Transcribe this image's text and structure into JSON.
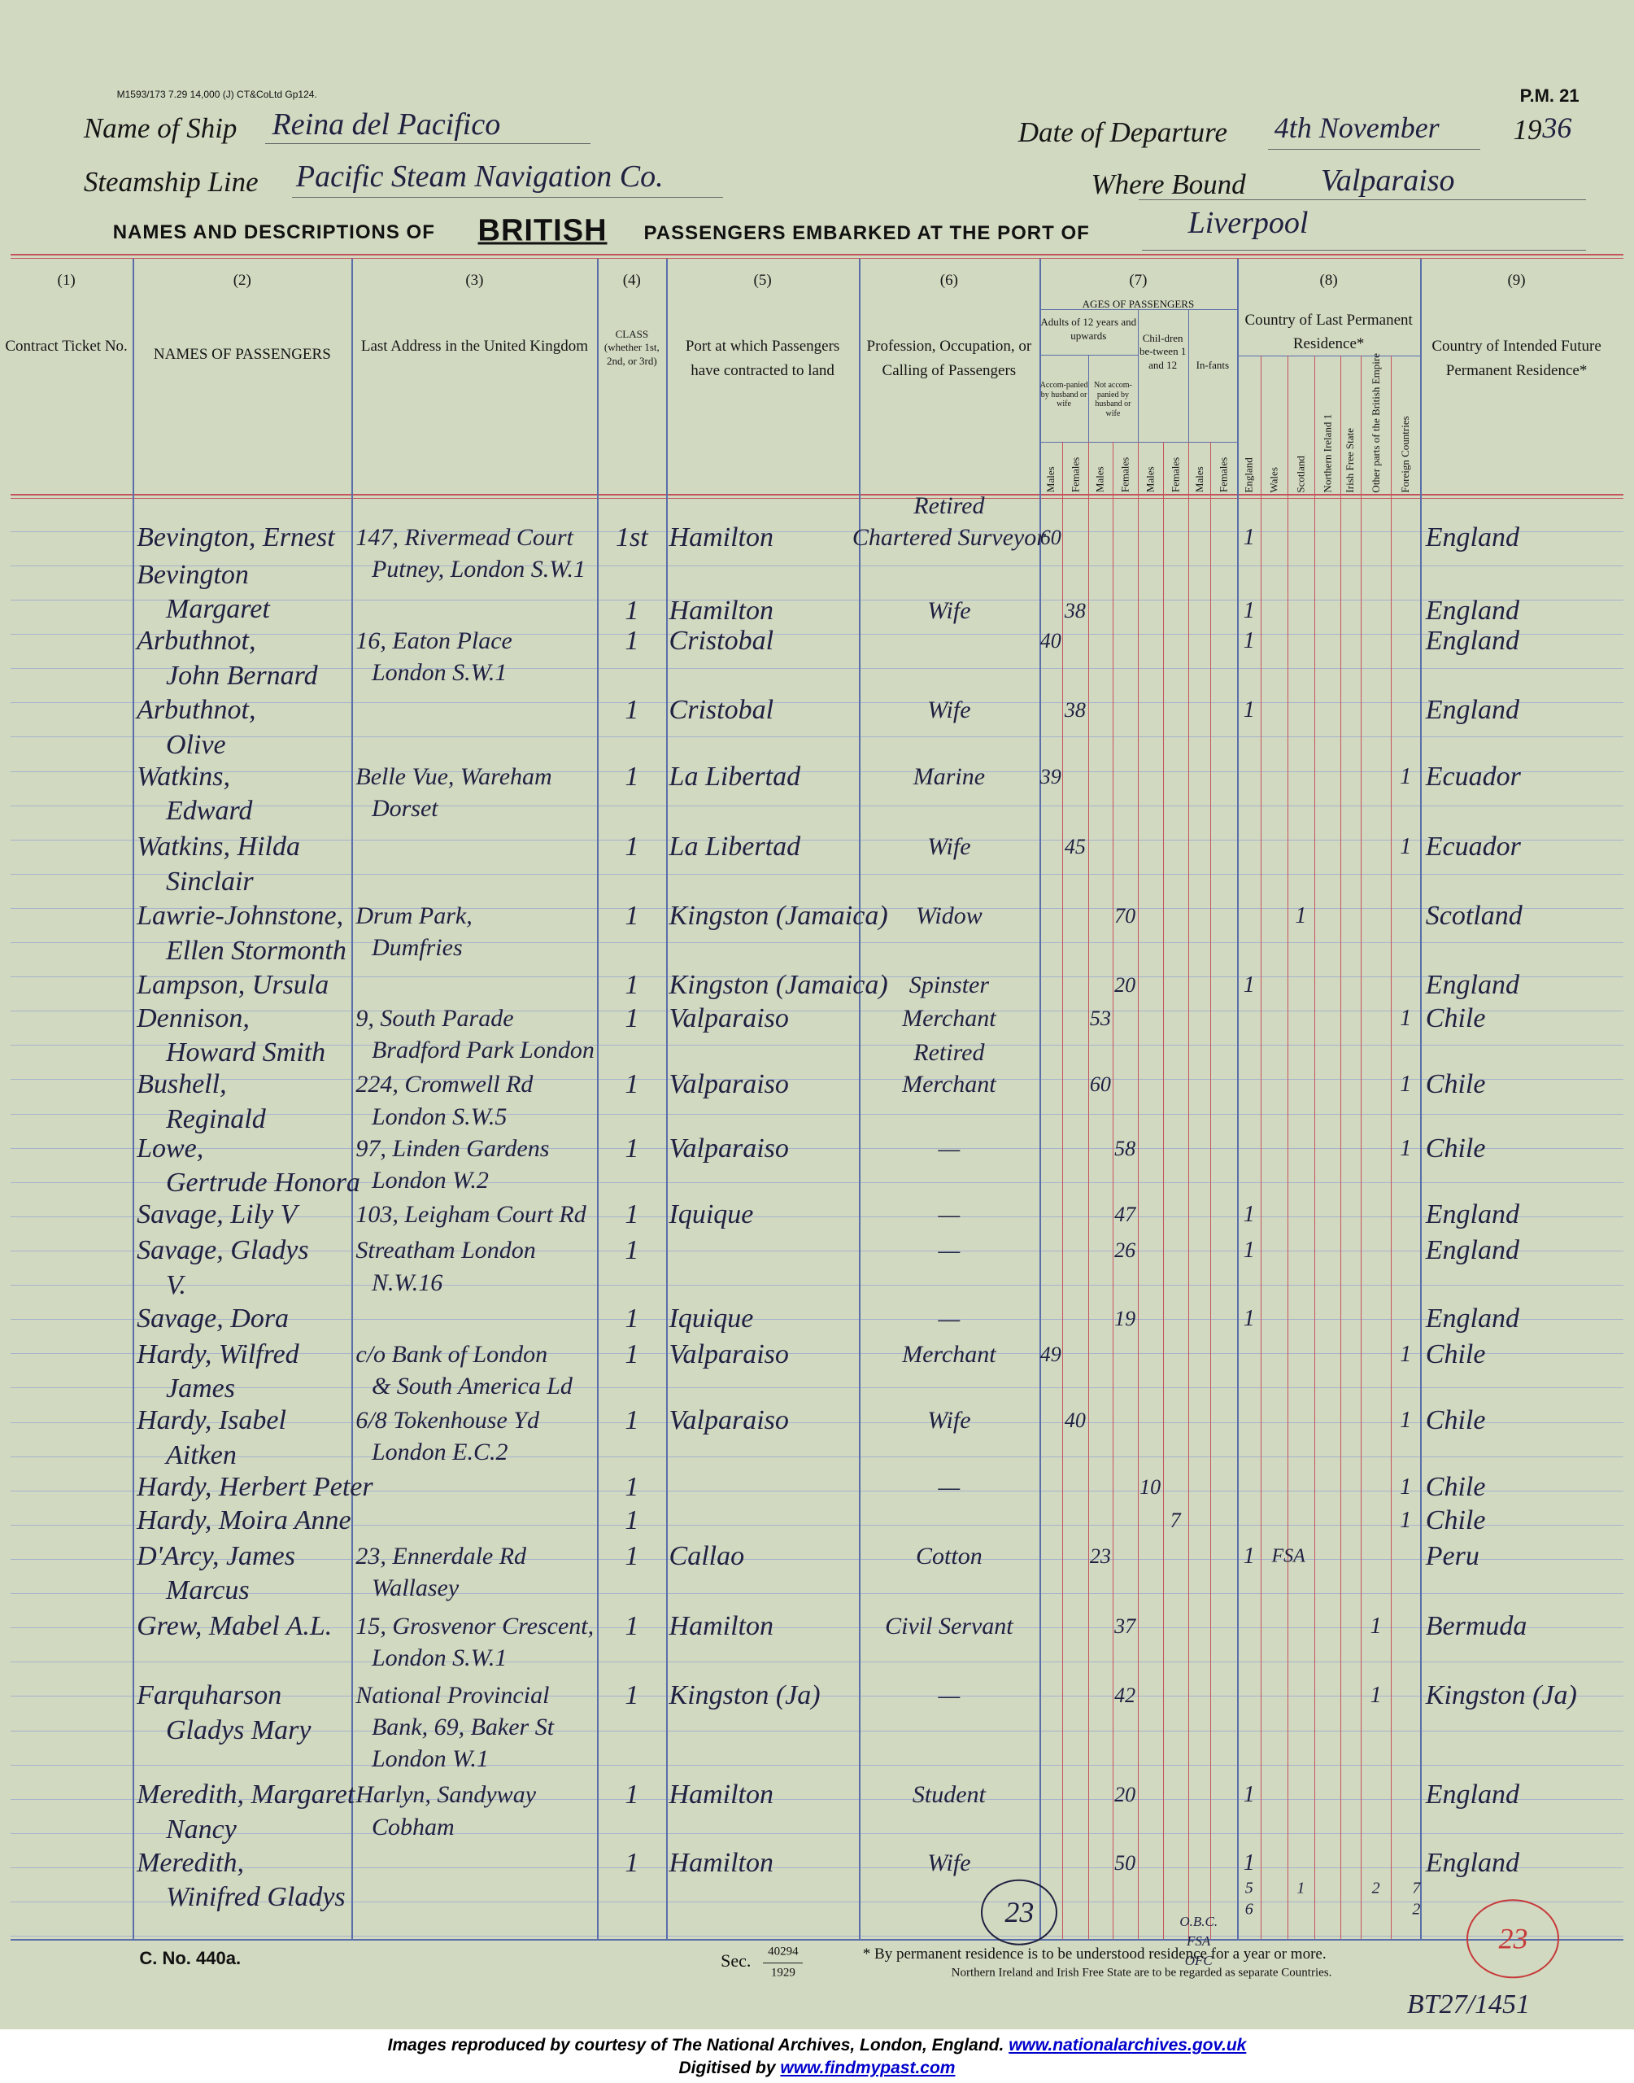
{
  "header": {
    "form_code": "M1593/173 7.29 14,000 (J) CT&CoLtd Gp124.",
    "form_number": "P.M. 21",
    "ship_label": "Name of Ship",
    "ship": "Reina del Pacifico",
    "departure_label": "Date of Departure",
    "departure_day": "4th November",
    "departure_year_printed": "19",
    "departure_year": "36",
    "line_label": "Steamship Line",
    "line": "Pacific Steam Navigation Co.",
    "bound_label": "Where Bound",
    "bound": "Valparaiso",
    "heading_start": "NAMES AND DESCRIPTIONS OF",
    "heading_british": "BRITISH",
    "heading_end": "PASSENGERS EMBARKED AT THE PORT OF",
    "port": "Liverpool"
  },
  "columns": [
    {
      "number": "(1)",
      "label": "Contract Ticket No."
    },
    {
      "number": "(2)",
      "label": "NAMES OF PASSENGERS"
    },
    {
      "number": "(3)",
      "label": "Last Address in the United Kingdom"
    },
    {
      "number": "(4)",
      "label": "CLASS (whether 1st, 2nd, or 3rd)"
    },
    {
      "number": "(5)",
      "label": "Port at which Passengers have contracted to land"
    },
    {
      "number": "(6)",
      "label": "Profession, Occupation, or Calling of Passengers"
    },
    {
      "number": "(7)",
      "label": "AGES OF PASSENGERS"
    },
    {
      "number": "(8)",
      "label": "Country of Last Permanent Residence*"
    },
    {
      "number": "(9)",
      "label": "Country of Intended Future Permanent Residence*"
    }
  ],
  "ages": {
    "adults": "Adults of 12 years and upwards",
    "accompanied": "Accom-panied by husband or wife",
    "not_accompanied": "Not accom-panied by husband or wife",
    "children": "Chil-dren be-tween 1 and 12",
    "infants": "In-fants",
    "sexes": [
      "Males",
      "Females",
      "Males",
      "Females",
      "Males",
      "Females",
      "Males",
      "Females"
    ]
  },
  "residence": {
    "countries": [
      "England",
      "Wales",
      "Scotland",
      "Northern Ireland 1",
      "Irish Free State",
      "Other parts of the British Empire",
      "Foreign Countries"
    ]
  },
  "rows": [
    {
      "name": [
        "Bevington, Ernest"
      ],
      "address": [
        "147, Rivermead Court",
        "Putney, London S.W.1"
      ],
      "class": "1st",
      "port": "Hamilton",
      "profession": [
        "Retired",
        "Chartered Surveyor"
      ],
      "age": 60,
      "age_column": 0,
      "residence": "1",
      "residence_column": 0,
      "intended": "England"
    },
    {
      "name": [
        "Bevington",
        "Margaret"
      ],
      "class": "1",
      "port": "Hamilton",
      "profession": [
        "Wife"
      ],
      "age": 38,
      "age_column": 1,
      "residence": "1",
      "residence_column": 0,
      "intended": "England"
    },
    {
      "name": [
        "Arbuthnot,",
        "John Bernard"
      ],
      "address": [
        "16, Eaton Place",
        "London S.W.1"
      ],
      "class": "1",
      "port": "Cristobal",
      "age": 40,
      "age_column": 0,
      "residence": "1",
      "residence_column": 0,
      "intended": "England"
    },
    {
      "name": [
        "Arbuthnot,",
        "Olive"
      ],
      "class": "1",
      "port": "Cristobal",
      "profession": [
        "Wife"
      ],
      "age": 38,
      "age_column": 1,
      "residence": "1",
      "residence_column": 0,
      "intended": "England"
    },
    {
      "name": [
        "Watkins,",
        "Edward"
      ],
      "address": [
        "Belle Vue, Wareham",
        "Dorset"
      ],
      "class": "1",
      "port": "La Libertad",
      "profession": [
        "Marine"
      ],
      "age": 39,
      "age_column": 0,
      "residence": "1",
      "residence_column": 6,
      "intended": "Ecuador"
    },
    {
      "name": [
        "Watkins, Hilda",
        "Sinclair"
      ],
      "class": "1",
      "port": "La Libertad",
      "profession": [
        "Wife"
      ],
      "age": 45,
      "age_column": 1,
      "residence": "1",
      "residence_column": 6,
      "intended": "Ecuador"
    },
    {
      "name": [
        "Lawrie-Johnstone,",
        "Ellen Stormonth"
      ],
      "address": [
        "Drum Park,",
        "Dumfries"
      ],
      "class": "1",
      "port": "Kingston (Jamaica)",
      "profession": [
        "Widow"
      ],
      "age": 70,
      "age_column": 3,
      "residence": "1",
      "residence_column": 2,
      "intended": "Scotland"
    },
    {
      "name": [
        "Lampson, Ursula"
      ],
      "class": "1",
      "port": "Kingston (Jamaica)",
      "profession": [
        "Spinster"
      ],
      "age": 20,
      "age_column": 3,
      "residence": "1",
      "residence_column": 0,
      "intended": "England"
    },
    {
      "name": [
        "Dennison,",
        "Howard Smith"
      ],
      "address": [
        "9, South Parade",
        "Bradford Park London"
      ],
      "class": "1",
      "port": "Valparaiso",
      "profession": [
        "Merchant"
      ],
      "age": 53,
      "age_column": 2,
      "residence": "1",
      "residence_column": 6,
      "intended": "Chile"
    },
    {
      "name": [
        "Bushell,",
        "Reginald"
      ],
      "address": [
        "224, Cromwell Rd",
        "London S.W.5"
      ],
      "class": "1",
      "port": "Valparaiso",
      "profession": [
        "Retired",
        "Merchant"
      ],
      "age": 60,
      "age_column": 2,
      "residence": "1",
      "residence_column": 6,
      "intended": "Chile"
    },
    {
      "name": [
        "Lowe,",
        "Gertrude Honora"
      ],
      "address": [
        "97, Linden Gardens",
        "London W.2"
      ],
      "class": "1",
      "port": "Valparaiso",
      "profession": [
        "—"
      ],
      "age": 58,
      "age_column": 3,
      "residence": "1",
      "residence_column": 6,
      "intended": "Chile"
    },
    {
      "name": [
        "Savage, Lily V"
      ],
      "address": [
        "103, Leigham Court Rd"
      ],
      "class": "1",
      "port": "Iquique",
      "profession": [
        "—"
      ],
      "age": 47,
      "age_column": 3,
      "residence": "1",
      "residence_column": 0,
      "intended": "England"
    },
    {
      "name": [
        "Savage, Gladys",
        "V."
      ],
      "address": [
        "Streatham London",
        "N.W.16"
      ],
      "class": "1",
      "profession": [
        "—"
      ],
      "age": 26,
      "age_column": 3,
      "residence": "1",
      "residence_column": 0,
      "intended": "England"
    },
    {
      "name": [
        "Savage, Dora"
      ],
      "class": "1",
      "port": "Iquique",
      "profession": [
        "—"
      ],
      "age": 19,
      "age_column": 3,
      "residence": "1",
      "residence_column": 0,
      "intended": "England"
    },
    {
      "name": [
        "Hardy, Wilfred",
        "James"
      ],
      "address": [
        "c/o Bank of London",
        "& South America Ld"
      ],
      "class": "1",
      "port": "Valparaiso",
      "profession": [
        "Merchant"
      ],
      "age": 49,
      "age_column": 0,
      "residence": "1",
      "residence_column": 6,
      "intended": "Chile"
    },
    {
      "name": [
        "Hardy, Isabel",
        "Aitken"
      ],
      "address": [
        "6/8 Tokenhouse Yd",
        "London E.C.2"
      ],
      "class": "1",
      "port": "Valparaiso",
      "profession": [
        "Wife"
      ],
      "age": 40,
      "age_column": 1,
      "residence": "1",
      "residence_column": 6,
      "intended": "Chile"
    },
    {
      "name": [
        "Hardy, Herbert Peter"
      ],
      "class": "1",
      "profession": [
        "—"
      ],
      "age": 10,
      "age_column": 4,
      "residence": "1",
      "residence_column": 6,
      "intended": "Chile"
    },
    {
      "name": [
        "Hardy, Moira Anne"
      ],
      "class": "1",
      "age": 7,
      "age_column": 5,
      "residence": "1",
      "residence_column": 6,
      "intended": "Chile"
    },
    {
      "name": [
        "D'Arcy, James",
        "Marcus"
      ],
      "address": [
        "23, Ennerdale Rd",
        "Wallasey"
      ],
      "class": "1",
      "port": "Callao",
      "profession": [
        "Cotton"
      ],
      "age": 23,
      "age_column": 2,
      "residence": "1",
      "residence_column": 0,
      "residence_note": "FSA",
      "intended": "Peru"
    },
    {
      "name": [
        "Grew, Mabel A.L."
      ],
      "address": [
        "15, Grosvenor Crescent,",
        "London S.W.1"
      ],
      "class": "1",
      "port": "Hamilton",
      "profession": [
        "Civil Servant"
      ],
      "age": 37,
      "age_column": 3,
      "residence": "1",
      "residence_column": 5,
      "intended": "Bermuda"
    },
    {
      "name": [
        "Farquharson",
        "Gladys Mary"
      ],
      "address": [
        "National Provincial",
        "Bank, 69, Baker St",
        "London W.1"
      ],
      "class": "1",
      "port": "Kingston (Ja)",
      "profession": [
        "—"
      ],
      "age": 42,
      "age_column": 3,
      "residence": "1",
      "residence_column": 5,
      "intended": "Kingston (Ja)"
    },
    {
      "name": [
        "Meredith, Margaret",
        "Nancy"
      ],
      "address": [
        "Harlyn, Sandyway",
        "Cobham"
      ],
      "class": "1",
      "port": "Hamilton",
      "profession": [
        "Student"
      ],
      "age": 20,
      "age_column": 3,
      "residence": "1",
      "residence_column": 0,
      "intended": "England"
    },
    {
      "name": [
        "Meredith,",
        "Winifred Gladys"
      ],
      "class": "1",
      "port": "Hamilton",
      "profession": [
        "Wife"
      ],
      "age": 50,
      "age_column": 3,
      "residence": "1",
      "residence_column": 0,
      "intended": "England"
    }
  ],
  "totals": [
    {
      "column": 0,
      "lines": [
        "5",
        "6"
      ]
    },
    {
      "column": 2,
      "lines": [
        "1"
      ]
    },
    {
      "column": 5,
      "lines": [
        "2"
      ]
    },
    {
      "column": 6,
      "lines": [
        "7",
        "2"
      ]
    }
  ],
  "annotations": {
    "office_marks": [
      "O.B.C.",
      "FSA",
      "OFC"
    ],
    "count": "23",
    "count_red": "23",
    "reference": "BT27/1451"
  },
  "footer": {
    "form_id": "C. No. 440a.",
    "sec_label": "Sec.",
    "sec_top": "40294",
    "sec_bottom": "1929",
    "note1": "* By permanent residence is to be understood residence for a year or more.",
    "note2": "Northern Ireland and Irish Free State are to be regarded as separate Countries."
  },
  "credits": {
    "text1": "Images reproduced by courtesy of The National Archives, London, England.",
    "link1": "www.nationalarchives.gov.uk",
    "text2": "Digitised by",
    "link2": "www.findmypast.com"
  }
}
